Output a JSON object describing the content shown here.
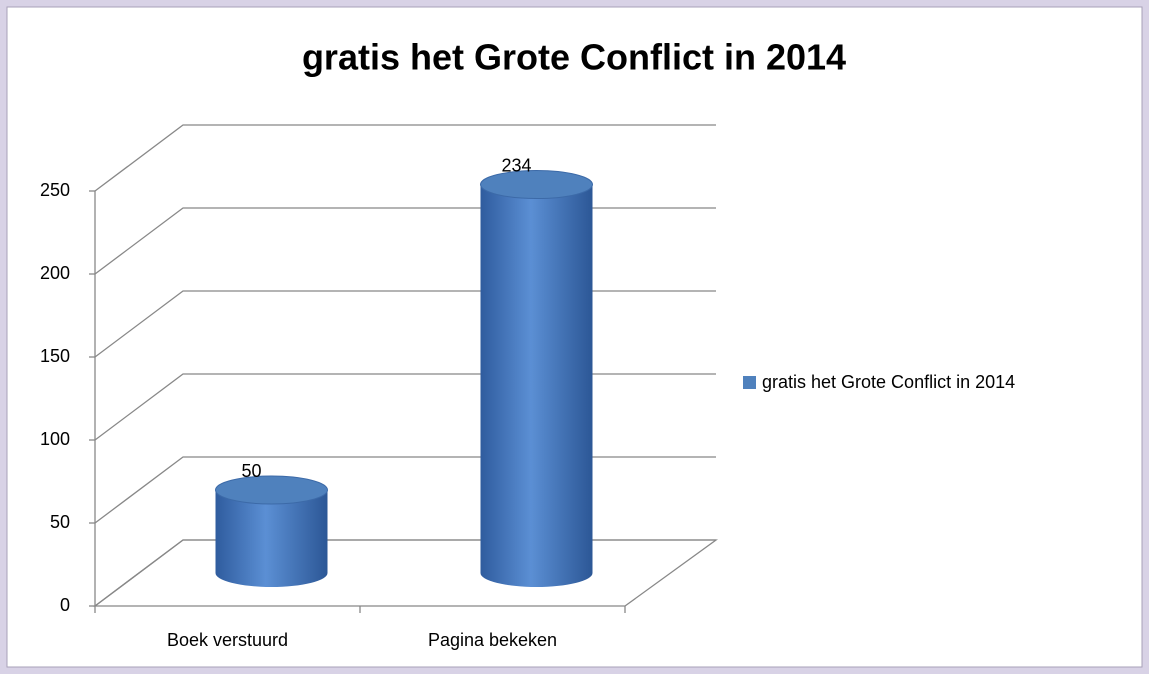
{
  "chart_data": {
    "type": "cylinder3d",
    "title": "gratis het Grote Conflict in 2014",
    "categories": [
      "Boek verstuurd",
      "Pagina bekeken"
    ],
    "series": [
      {
        "name": "gratis het Grote Conflict in 2014",
        "color": "#4f81bd",
        "values": [
          50,
          234
        ]
      }
    ],
    "ylim": [
      0,
      250
    ],
    "yticks": [
      0,
      50,
      100,
      150,
      200,
      250
    ],
    "grid": true,
    "legend": "right"
  }
}
